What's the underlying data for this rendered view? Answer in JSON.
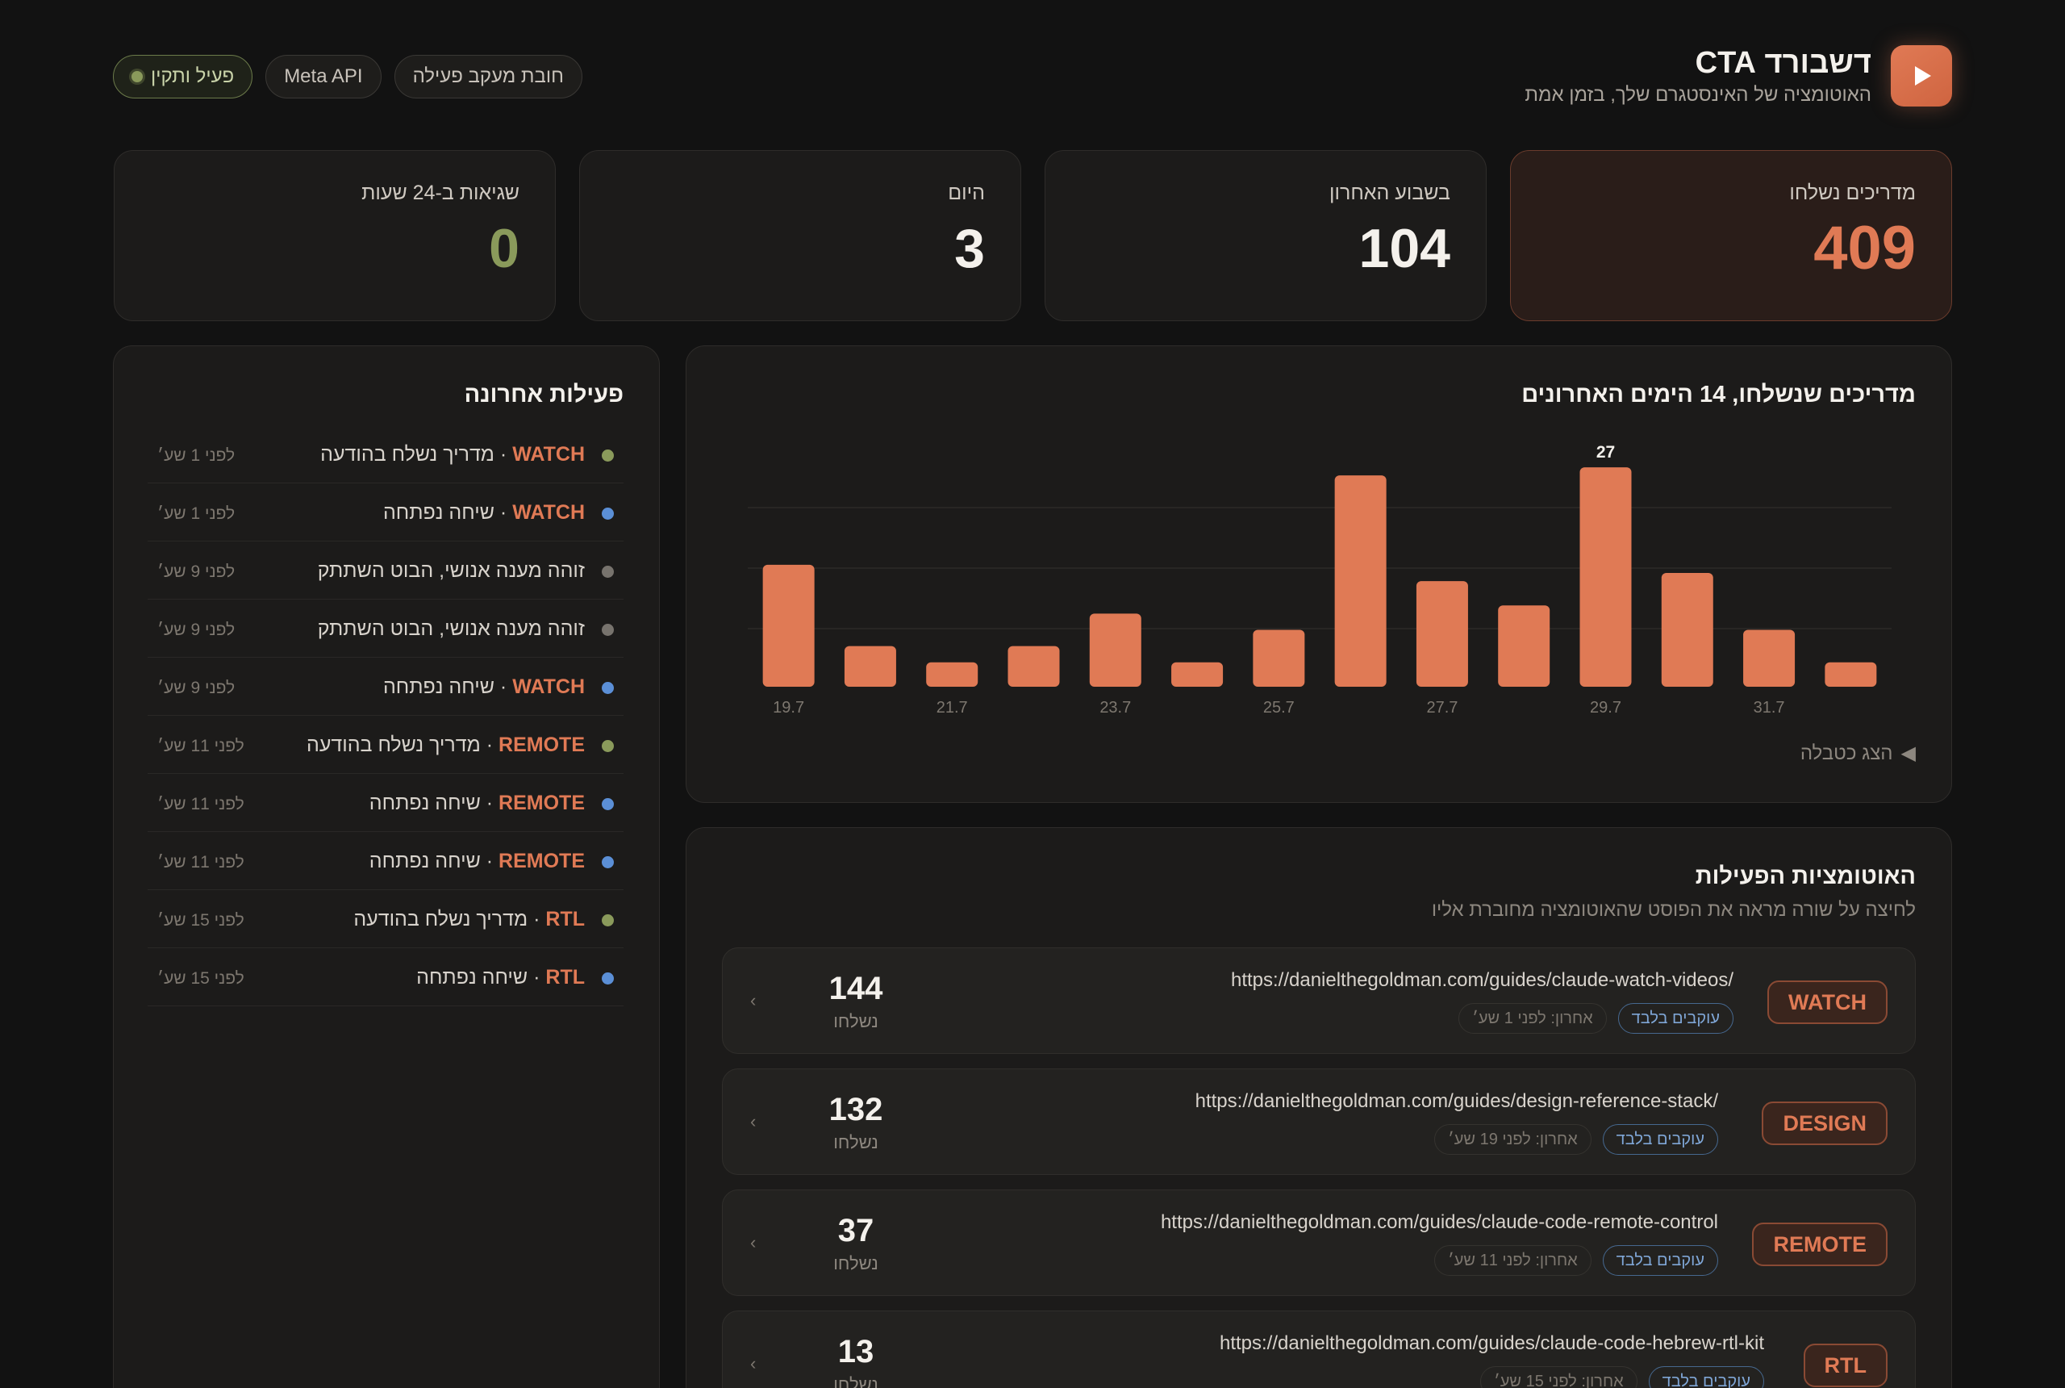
{
  "header": {
    "title": "דשבורד CTA",
    "subtitle": "האוטומציה של האינסטגרם שלך, בזמן אמת",
    "logo_icon": "play-icon",
    "pills": [
      {
        "label": "פעיל ותקין",
        "status": "active"
      },
      {
        "label": "Meta API"
      },
      {
        "label": "חובת מעקב פעילה"
      }
    ]
  },
  "stats": [
    {
      "label": "מדריכים נשלחו",
      "value": "409"
    },
    {
      "label": "בשבוע האחרון",
      "value": "104"
    },
    {
      "label": "היום",
      "value": "3"
    },
    {
      "label": "שגיאות ב-24 שעות",
      "value": "0"
    }
  ],
  "chart": {
    "title": "מדריכים שנשלחו, 14 הימים האחרונים",
    "toggle_label": "הצג כטבלה",
    "toggle_icon": "caret-left-icon"
  },
  "chart_data": {
    "type": "bar",
    "categories": [
      "19.7",
      "20.7",
      "21.7",
      "22.7",
      "23.7",
      "24.7",
      "25.7",
      "26.7",
      "27.7",
      "28.7",
      "29.7",
      "30.7",
      "31.7",
      "1.8"
    ],
    "tick_labels": [
      "19.7",
      "21.7",
      "23.7",
      "25.7",
      "27.7",
      "29.7",
      "31.7"
    ],
    "values": [
      15,
      5,
      3,
      5,
      9,
      3,
      7,
      26,
      13,
      10,
      27,
      14,
      7,
      3
    ],
    "data_labels": [
      {
        "index": 10,
        "text": "27"
      }
    ],
    "ylim": [
      0,
      28
    ],
    "color": "#e07a55",
    "grid": true
  },
  "automations": {
    "title": "האוטומציות הפעילות",
    "subtitle": "לחיצה על שורה מראה את הפוסט שהאוטומציה מחוברת אליו",
    "rows": [
      {
        "tag": "WATCH",
        "url": "https://danielthegoldman.com/guides/claude-watch-videos/",
        "chip": "עוקבים בלבד",
        "last": "אחרון: לפני 1 שע׳",
        "count": "144",
        "unit": "נשלחו"
      },
      {
        "tag": "DESIGN",
        "url": "https://danielthegoldman.com/guides/design-reference-stack/",
        "chip": "עוקבים בלבד",
        "last": "אחרון: לפני 19 שע׳",
        "count": "132",
        "unit": "נשלחו"
      },
      {
        "tag": "REMOTE",
        "url": "https://danielthegoldman.com/guides/claude-code-remote-control",
        "chip": "עוקבים בלבד",
        "last": "אחרון: לפני 11 שע׳",
        "count": "37",
        "unit": "נשלחו"
      },
      {
        "tag": "RTL",
        "url": "https://danielthegoldman.com/guides/claude-code-hebrew-rtl-kit",
        "chip": "עוקבים בלבד",
        "last": "אחרון: לפני 15 שע׳",
        "count": "13",
        "unit": "נשלחו"
      }
    ]
  },
  "activity": {
    "title": "פעילות אחרונה",
    "items": [
      {
        "tag": "WATCH",
        "sep": " · ",
        "text": "מדריך נשלח בהודעה",
        "time": "לפני 1 שע׳",
        "dot": "#8a9a5b"
      },
      {
        "tag": "WATCH",
        "sep": " · ",
        "text": "שיחה נפתחה",
        "time": "לפני 1 שע׳",
        "dot": "#5b8fd6"
      },
      {
        "tag": "",
        "sep": "",
        "text": "זוהה מענה אנושי, הבוט השתתק",
        "time": "לפני 9 שע׳",
        "dot": "#77736d"
      },
      {
        "tag": "",
        "sep": "",
        "text": "זוהה מענה אנושי, הבוט השתתק",
        "time": "לפני 9 שע׳",
        "dot": "#77736d"
      },
      {
        "tag": "WATCH",
        "sep": " · ",
        "text": "שיחה נפתחה",
        "time": "לפני 9 שע׳",
        "dot": "#5b8fd6"
      },
      {
        "tag": "REMOTE",
        "sep": " · ",
        "text": "מדריך נשלח בהודעה",
        "time": "לפני 11 שע׳",
        "dot": "#8a9a5b"
      },
      {
        "tag": "REMOTE",
        "sep": " · ",
        "text": "שיחה נפתחה",
        "time": "לפני 11 שע׳",
        "dot": "#5b8fd6"
      },
      {
        "tag": "REMOTE",
        "sep": " · ",
        "text": "שיחה נפתחה",
        "time": "לפני 11 שע׳",
        "dot": "#5b8fd6"
      },
      {
        "tag": "RTL",
        "sep": " · ",
        "text": "מדריך נשלח בהודעה",
        "time": "לפני 15 שע׳",
        "dot": "#8a9a5b"
      },
      {
        "tag": "RTL",
        "sep": " · ",
        "text": "שיחה נפתחה",
        "time": "לפני 15 שע׳",
        "dot": "#5b8fd6"
      }
    ]
  }
}
